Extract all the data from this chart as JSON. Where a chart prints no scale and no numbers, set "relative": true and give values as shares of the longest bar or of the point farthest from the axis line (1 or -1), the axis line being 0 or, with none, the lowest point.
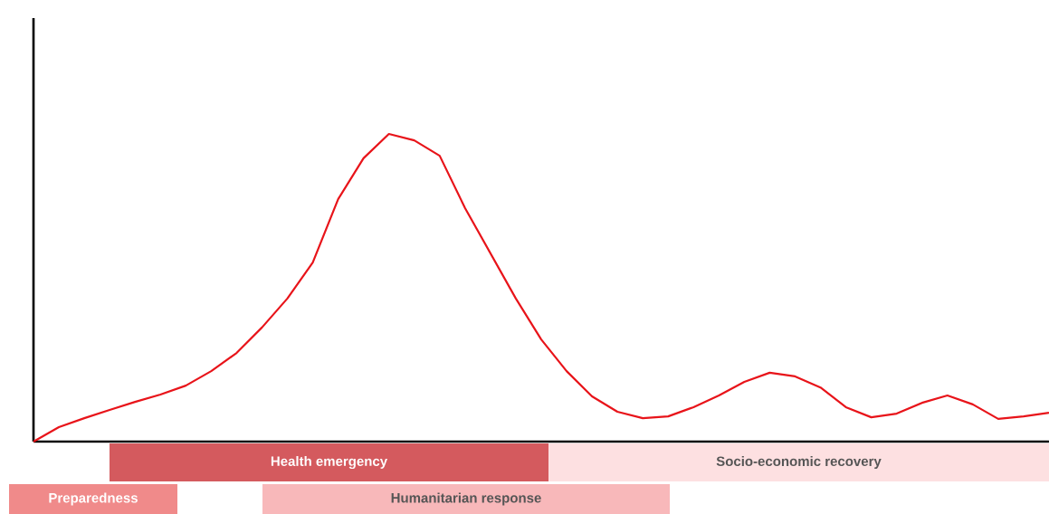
{
  "chart_data": {
    "type": "line",
    "relative": true,
    "marker": "none",
    "line_style": "solid",
    "categories": [
      null,
      null,
      null,
      null,
      null,
      null,
      null,
      null,
      null,
      null,
      null,
      null,
      null,
      null,
      null,
      null,
      null,
      null,
      null,
      null,
      null,
      null,
      null,
      null,
      null,
      null,
      null,
      null,
      null,
      null,
      null,
      null,
      null,
      null,
      null,
      null,
      null,
      null,
      null,
      null,
      null
    ],
    "series": [
      {
        "color": "#e8141a",
        "values": [
          0,
          0.047,
          0.076,
          0.103,
          0.129,
          0.153,
          0.182,
          0.229,
          0.288,
          0.371,
          0.465,
          0.582,
          0.788,
          0.921,
          1,
          0.979,
          0.929,
          0.759,
          0.612,
          0.465,
          0.332,
          0.229,
          0.147,
          0.097,
          0.076,
          0.082,
          0.112,
          0.15,
          0.194,
          0.224,
          0.212,
          0.176,
          0.112,
          0.079,
          0.091,
          0.126,
          0.15,
          0.121,
          0.074,
          0.082,
          0.094
        ]
      }
    ],
    "annotations": [
      "Health emergency",
      "Socio-economic recovery",
      "Preparedness",
      "Humanitarian response"
    ]
  }
}
